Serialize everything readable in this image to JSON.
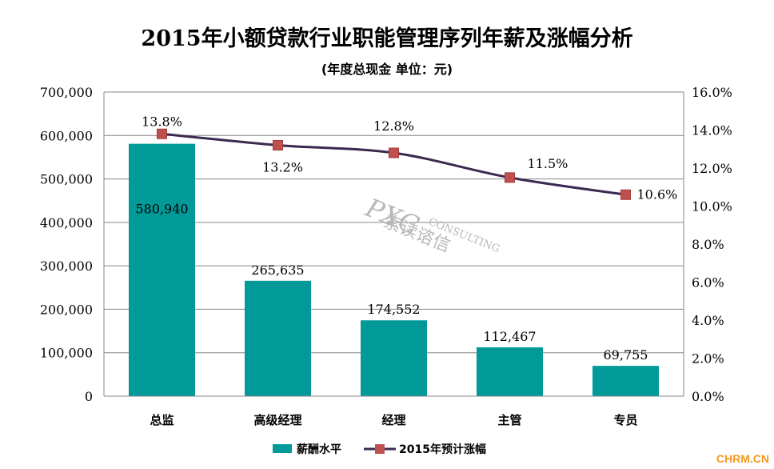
{
  "title": "2015年小额贷款行业职能管理序列年薪及涨幅分析",
  "subtitle": "(年度总现金 单位：元)",
  "watermark": {
    "brand": "PXC",
    "sub": "CONSULTING",
    "cn": "索读谘信"
  },
  "footer_logo": "CHRM.CN",
  "colors": {
    "bar": "#019a99",
    "line": "#3b2a4f",
    "marker": "#c0504d"
  },
  "chart_data": {
    "type": "bar",
    "categories": [
      "总监",
      "高级经理",
      "经理",
      "主管",
      "专员"
    ],
    "series": [
      {
        "name": "薪酬水平",
        "type": "bar",
        "axis": "left",
        "values": [
          580940,
          265635,
          174552,
          112467,
          69755
        ],
        "labels": [
          "580,940",
          "265,635",
          "174,552",
          "112,467",
          "69,755"
        ]
      },
      {
        "name": "2015年预计涨幅",
        "type": "line",
        "axis": "right",
        "values": [
          13.8,
          13.2,
          12.8,
          11.5,
          10.6
        ],
        "labels": [
          "13.8%",
          "13.2%",
          "12.8%",
          "11.5%",
          "10.6%"
        ]
      }
    ],
    "y_left": {
      "ylim": [
        0,
        700000
      ],
      "ticks": [
        "0",
        "100,000",
        "200,000",
        "300,000",
        "400,000",
        "500,000",
        "600,000",
        "700,000"
      ]
    },
    "y_right": {
      "ylim": [
        0,
        16
      ],
      "ticks": [
        "0.0%",
        "2.0%",
        "4.0%",
        "6.0%",
        "8.0%",
        "10.0%",
        "12.0%",
        "14.0%",
        "16.0%"
      ]
    },
    "grid": true,
    "legend": "bottom"
  }
}
